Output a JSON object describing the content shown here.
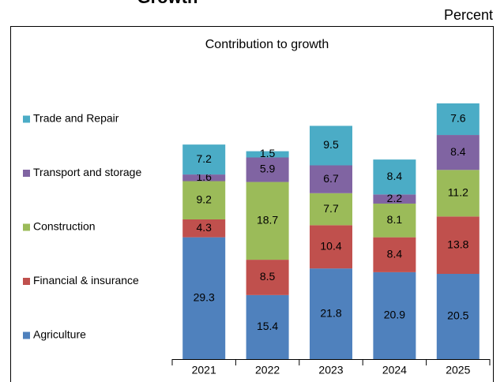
{
  "chart_data": {
    "type": "stacked_bar",
    "heading": "Growth",
    "unit": "Percent",
    "title": "Contribution to growth",
    "categories": [
      "2021",
      "2022",
      "2023",
      "2024",
      "2025"
    ],
    "series": [
      {
        "name": "Agriculture",
        "color": "#4f81bd",
        "values": [
          29.3,
          15.4,
          21.8,
          20.9,
          20.5
        ]
      },
      {
        "name": "Financial & insurance",
        "color": "#c0504d",
        "values": [
          4.3,
          8.5,
          10.4,
          8.4,
          13.8
        ]
      },
      {
        "name": "Construction",
        "color": "#9bbb59",
        "values": [
          9.2,
          18.7,
          7.7,
          8.1,
          11.2
        ]
      },
      {
        "name": "Transport and storage",
        "color": "#8064a2",
        "values": [
          1.6,
          5.9,
          6.7,
          2.2,
          8.4
        ]
      },
      {
        "name": "Trade and Repair",
        "color": "#4bacc6",
        "values": [
          7.2,
          1.5,
          9.5,
          8.4,
          7.6
        ]
      }
    ]
  }
}
